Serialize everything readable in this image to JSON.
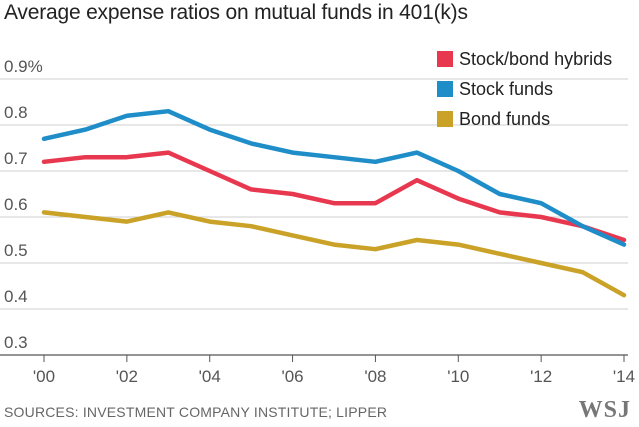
{
  "title": "Average expense ratios on mutual funds in 401(k)s",
  "source": "SOURCES: INVESTMENT COMPANY INSTITUTE; LIPPER",
  "logo": "WSJ",
  "chart_data": {
    "type": "line",
    "title": "Average expense ratios on mutual funds in 401(k)s",
    "xlabel": "",
    "ylabel": "",
    "x": [
      2000,
      2001,
      2002,
      2003,
      2004,
      2005,
      2006,
      2007,
      2008,
      2009,
      2010,
      2011,
      2012,
      2013,
      2014
    ],
    "x_tick_values": [
      2000,
      2002,
      2004,
      2006,
      2008,
      2010,
      2012,
      2014
    ],
    "x_tick_labels": [
      "'00",
      "'02",
      "'04",
      "'06",
      "'08",
      "'10",
      "'12",
      "'14"
    ],
    "y_tick_values": [
      0.3,
      0.4,
      0.5,
      0.6,
      0.7,
      0.8,
      0.9
    ],
    "y_tick_labels": [
      "0.3",
      "0.4",
      "0.5",
      "0.6",
      "0.7",
      "0.8",
      "0.9%"
    ],
    "ylim": [
      0.3,
      0.9
    ],
    "grid": true,
    "legend_position": "top-right",
    "series": [
      {
        "name": "Stock/bond hybrids",
        "color": "#e8384f",
        "values": [
          0.72,
          0.73,
          0.73,
          0.74,
          0.7,
          0.66,
          0.65,
          0.63,
          0.63,
          0.68,
          0.64,
          0.61,
          0.6,
          0.58,
          0.55
        ]
      },
      {
        "name": "Stock funds",
        "color": "#1f8dc8",
        "values": [
          0.77,
          0.79,
          0.82,
          0.83,
          0.79,
          0.76,
          0.74,
          0.73,
          0.72,
          0.74,
          0.7,
          0.65,
          0.63,
          0.58,
          0.54
        ]
      },
      {
        "name": "Bond funds",
        "color": "#c9a227",
        "values": [
          0.61,
          0.6,
          0.59,
          0.61,
          0.59,
          0.58,
          0.56,
          0.54,
          0.53,
          0.55,
          0.54,
          0.52,
          0.5,
          0.48,
          0.43
        ]
      }
    ]
  }
}
